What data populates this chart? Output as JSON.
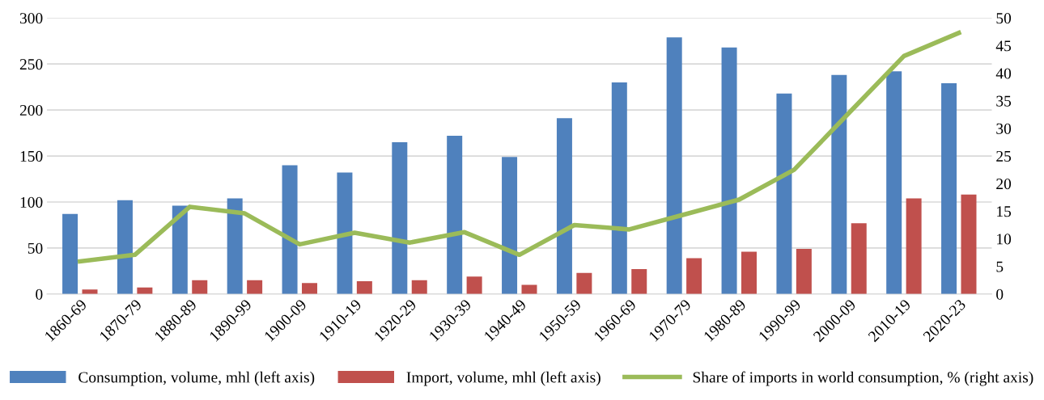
{
  "chart_data": {
    "type": "bar",
    "categories": [
      "1860-69",
      "1870-79",
      "1880-89",
      "1890-99",
      "1900-09",
      "1910-19",
      "1920-29",
      "1930-39",
      "1940-49",
      "1950-59",
      "1960-69",
      "1970-79",
      "1980-89",
      "1990-99",
      "2000-09",
      "2010-19",
      "2020-23"
    ],
    "series": [
      {
        "name": "Consumption, volume, mhl (left axis)",
        "color": "#4f81bd",
        "values": [
          87,
          102,
          96,
          104,
          140,
          132,
          165,
          172,
          149,
          191,
          230,
          279,
          268,
          218,
          238,
          242,
          229
        ]
      },
      {
        "name": "Import, volume, mhl (left axis)",
        "color": "#c0504d",
        "values": [
          5,
          7,
          15,
          15,
          12,
          14,
          15,
          19,
          10,
          23,
          27,
          39,
          46,
          49,
          77,
          104,
          108
        ]
      },
      {
        "name": "Share of imports in world consumption, % (right axis)",
        "color": "#9bbb59",
        "type": "line",
        "axis": "y2",
        "values": [
          5.9,
          7.1,
          15.8,
          14.6,
          9.0,
          11.1,
          9.3,
          11.2,
          7.1,
          12.5,
          11.7,
          14.4,
          17.1,
          22.5,
          32.8,
          43.1,
          47.3
        ]
      }
    ],
    "ylim": [
      0,
      300
    ],
    "yticks": [
      0,
      50,
      100,
      150,
      200,
      250,
      300
    ],
    "y2lim": [
      0,
      50
    ],
    "y2ticks": [
      0,
      5,
      10,
      15,
      20,
      25,
      30,
      35,
      40,
      45,
      50
    ],
    "grid": "y",
    "legend": "bottom"
  }
}
